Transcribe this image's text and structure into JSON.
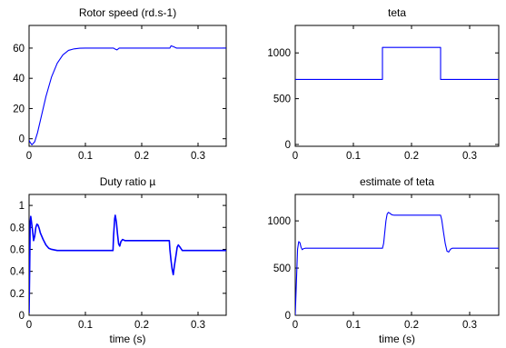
{
  "chart_data": [
    {
      "type": "line",
      "title": "Rotor speed (rd.s-1)",
      "xlabel": "",
      "ylabel": "",
      "xlim": [
        0,
        0.35
      ],
      "ylim": [
        -5,
        75
      ],
      "xticks": [
        0,
        0.1,
        0.2,
        0.3
      ],
      "xtick_labels": [
        "0",
        "0.1",
        "0.2",
        "0.3"
      ],
      "yticks": [
        0,
        20,
        40,
        60
      ],
      "ytick_labels": [
        "0",
        "20",
        "40",
        "60"
      ],
      "grid": false,
      "color": "#0000ff",
      "series": [
        {
          "x": [
            0,
            0.002,
            0.005,
            0.01,
            0.015,
            0.02,
            0.03,
            0.04,
            0.05,
            0.06,
            0.07,
            0.08,
            0.09,
            0.1,
            0.15,
            0.152,
            0.156,
            0.16,
            0.2,
            0.25,
            0.252,
            0.256,
            0.262,
            0.35
          ],
          "y": [
            -1,
            -2.5,
            -4,
            -2,
            4,
            12,
            28,
            41,
            50,
            55.5,
            58.5,
            59.5,
            59.9,
            60,
            60,
            59.5,
            58.8,
            60,
            60,
            60,
            61.5,
            61,
            60,
            60
          ]
        }
      ]
    },
    {
      "type": "line",
      "title": "teta",
      "xlabel": "",
      "ylabel": "",
      "xlim": [
        0,
        0.35
      ],
      "ylim": [
        -20,
        1300
      ],
      "xticks": [
        0,
        0.1,
        0.2,
        0.3
      ],
      "xtick_labels": [
        "0",
        "0.1",
        "0.2",
        "0.3"
      ],
      "yticks": [
        0,
        500,
        1000
      ],
      "ytick_labels": [
        "0",
        "500",
        "1000"
      ],
      "grid": false,
      "color": "#0000ff",
      "series": [
        {
          "x": [
            0,
            0.15,
            0.15,
            0.25,
            0.25,
            0.35
          ],
          "y": [
            710,
            710,
            1060,
            1060,
            710,
            710
          ]
        }
      ]
    },
    {
      "type": "line",
      "title": "Duty ratio µ",
      "xlabel": "time (s)",
      "ylabel": "",
      "xlim": [
        0,
        0.35
      ],
      "ylim": [
        0,
        1.1
      ],
      "xticks": [
        0,
        0.1,
        0.2,
        0.3
      ],
      "xtick_labels": [
        "0",
        "0.1",
        "0.2",
        "0.3"
      ],
      "yticks": [
        0,
        0.2,
        0.4,
        0.6,
        0.8,
        1
      ],
      "ytick_labels": [
        "0",
        "0.2",
        "0.4",
        "0.6",
        "0.8",
        "1"
      ],
      "grid": false,
      "color": "#0000ff",
      "series": [
        {
          "x": [
            0,
            0.001,
            0.002,
            0.003,
            0.004,
            0.006,
            0.008,
            0.01,
            0.012,
            0.014,
            0.016,
            0.018,
            0.02,
            0.025,
            0.03,
            0.035,
            0.04,
            0.05,
            0.06,
            0.08,
            0.1,
            0.13,
            0.149,
            0.15,
            0.152,
            0.153,
            0.155,
            0.157,
            0.159,
            0.161,
            0.163,
            0.166,
            0.17,
            0.2,
            0.249,
            0.25,
            0.252,
            0.254,
            0.256,
            0.258,
            0.261,
            0.263,
            0.265,
            0.268,
            0.272,
            0.28,
            0.35
          ],
          "y": [
            0.02,
            0.4,
            0.85,
            0.9,
            0.86,
            0.78,
            0.68,
            0.72,
            0.8,
            0.83,
            0.82,
            0.79,
            0.75,
            0.69,
            0.64,
            0.61,
            0.6,
            0.59,
            0.59,
            0.59,
            0.59,
            0.59,
            0.59,
            0.72,
            0.88,
            0.91,
            0.85,
            0.74,
            0.65,
            0.63,
            0.67,
            0.69,
            0.68,
            0.68,
            0.68,
            0.6,
            0.5,
            0.42,
            0.37,
            0.45,
            0.55,
            0.62,
            0.64,
            0.62,
            0.59,
            0.59,
            0.59
          ]
        }
      ]
    },
    {
      "type": "line",
      "title": "estimate of teta",
      "xlabel": "time (s)",
      "ylabel": "",
      "xlim": [
        0,
        0.35
      ],
      "ylim": [
        0,
        1280
      ],
      "xticks": [
        0,
        0.1,
        0.2,
        0.3
      ],
      "xtick_labels": [
        "0",
        "0.1",
        "0.2",
        "0.3"
      ],
      "yticks": [
        0,
        500,
        1000
      ],
      "ytick_labels": [
        "0",
        "500",
        "1000"
      ],
      "grid": false,
      "color": "#0000ff",
      "series": [
        {
          "x": [
            0,
            0.002,
            0.004,
            0.006,
            0.008,
            0.01,
            0.012,
            0.014,
            0.017,
            0.02,
            0.15,
            0.152,
            0.154,
            0.156,
            0.158,
            0.16,
            0.163,
            0.166,
            0.17,
            0.25,
            0.252,
            0.255,
            0.258,
            0.261,
            0.264,
            0.267,
            0.27,
            0.35
          ],
          "y": [
            0,
            350,
            700,
            780,
            770,
            720,
            695,
            705,
            710,
            710,
            710,
            760,
            880,
            1000,
            1070,
            1090,
            1080,
            1065,
            1060,
            1060,
            1010,
            880,
            760,
            680,
            670,
            700,
            710,
            710
          ]
        }
      ]
    }
  ]
}
